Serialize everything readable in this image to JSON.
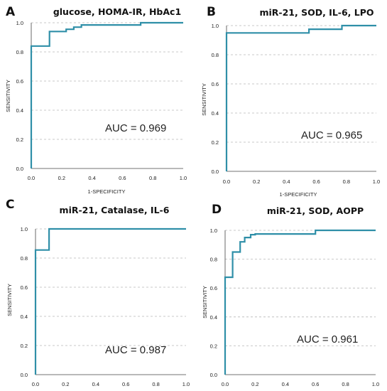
{
  "chart_data": [
    {
      "panel": "A",
      "type": "line",
      "title": "glucose, HOMA-IR, HbAc1",
      "xlabel": "1-SPECIFICITY",
      "ylabel": "SENSITIVITY",
      "xlim": [
        0,
        1
      ],
      "ylim": [
        0,
        1
      ],
      "xticks": [
        "0.0",
        "0.2",
        "0.4",
        "0.6",
        "0.8",
        "1.0"
      ],
      "yticks": [
        "0.0",
        "0.2",
        "0.4",
        "0.6",
        "0.8",
        "1.0"
      ],
      "annotation": "AUC = 0.969",
      "series": [
        {
          "color": "#2f8fa8",
          "x": [
            0,
            0,
            0.12,
            0.12,
            0.23,
            0.23,
            0.28,
            0.28,
            0.33,
            0.33,
            0.72,
            0.72,
            1.0
          ],
          "y": [
            0,
            0.84,
            0.84,
            0.94,
            0.94,
            0.955,
            0.955,
            0.97,
            0.97,
            0.985,
            0.985,
            1.0,
            1.0
          ]
        }
      ],
      "grid": "horizontal dashed"
    },
    {
      "panel": "B",
      "type": "line",
      "title": "miR-21, SOD, IL-6, LPO",
      "xlabel": "1-SPECIFICITY",
      "ylabel": "SENSITIVITY",
      "xlim": [
        0,
        1
      ],
      "ylim": [
        0,
        1
      ],
      "xticks": [
        "0.0",
        "0.2",
        "0.4",
        "0.6",
        "0.8",
        "1.0"
      ],
      "yticks": [
        "0.0",
        "0.2",
        "0.4",
        "0.6",
        "0.8",
        "1.0"
      ],
      "annotation": "AUC = 0.965",
      "series": [
        {
          "color": "#2f8fa8",
          "x": [
            0,
            0,
            0.55,
            0.55,
            0.77,
            0.77,
            1.0
          ],
          "y": [
            0,
            0.95,
            0.95,
            0.975,
            0.975,
            1.0,
            1.0
          ]
        }
      ],
      "grid": "horizontal dashed"
    },
    {
      "panel": "C",
      "type": "line",
      "title": "miR-21, Catalase, IL-6",
      "xlabel": "",
      "ylabel": "SENSITIVITY",
      "xlim": [
        0,
        1
      ],
      "ylim": [
        0,
        1
      ],
      "xticks": [
        "0.0",
        "0.2",
        "0.4",
        "0.6",
        "0.8",
        "1.0"
      ],
      "yticks": [
        "0.0",
        "0.2",
        "0.4",
        "0.6",
        "0.8",
        "1.0"
      ],
      "annotation": "AUC = 0.987",
      "series": [
        {
          "color": "#2f8fa8",
          "x": [
            0,
            0,
            0.09,
            0.09,
            1.0
          ],
          "y": [
            0,
            0.855,
            0.855,
            1.0,
            1.0
          ]
        }
      ],
      "grid": "horizontal dashed"
    },
    {
      "panel": "D",
      "type": "line",
      "title": "miR-21, SOD, AOPP",
      "xlabel": "",
      "ylabel": "SENSITIVITY",
      "xlim": [
        0,
        1
      ],
      "ylim": [
        0,
        1
      ],
      "xticks": [
        "0.0",
        "0.2",
        "0.4",
        "0.6",
        "0.8",
        "1.0"
      ],
      "yticks": [
        "0.0",
        "0.2",
        "0.4",
        "0.6",
        "0.8",
        "1.0"
      ],
      "annotation": "AUC = 0.961",
      "series": [
        {
          "color": "#2f8fa8",
          "x": [
            0,
            0,
            0.05,
            0.05,
            0.1,
            0.1,
            0.13,
            0.13,
            0.17,
            0.17,
            0.2,
            0.2,
            0.6,
            0.6,
            1.0
          ],
          "y": [
            0,
            0.675,
            0.675,
            0.85,
            0.85,
            0.92,
            0.92,
            0.95,
            0.95,
            0.97,
            0.97,
            0.975,
            0.975,
            1.0,
            1.0
          ]
        }
      ],
      "grid": "horizontal dashed"
    }
  ]
}
